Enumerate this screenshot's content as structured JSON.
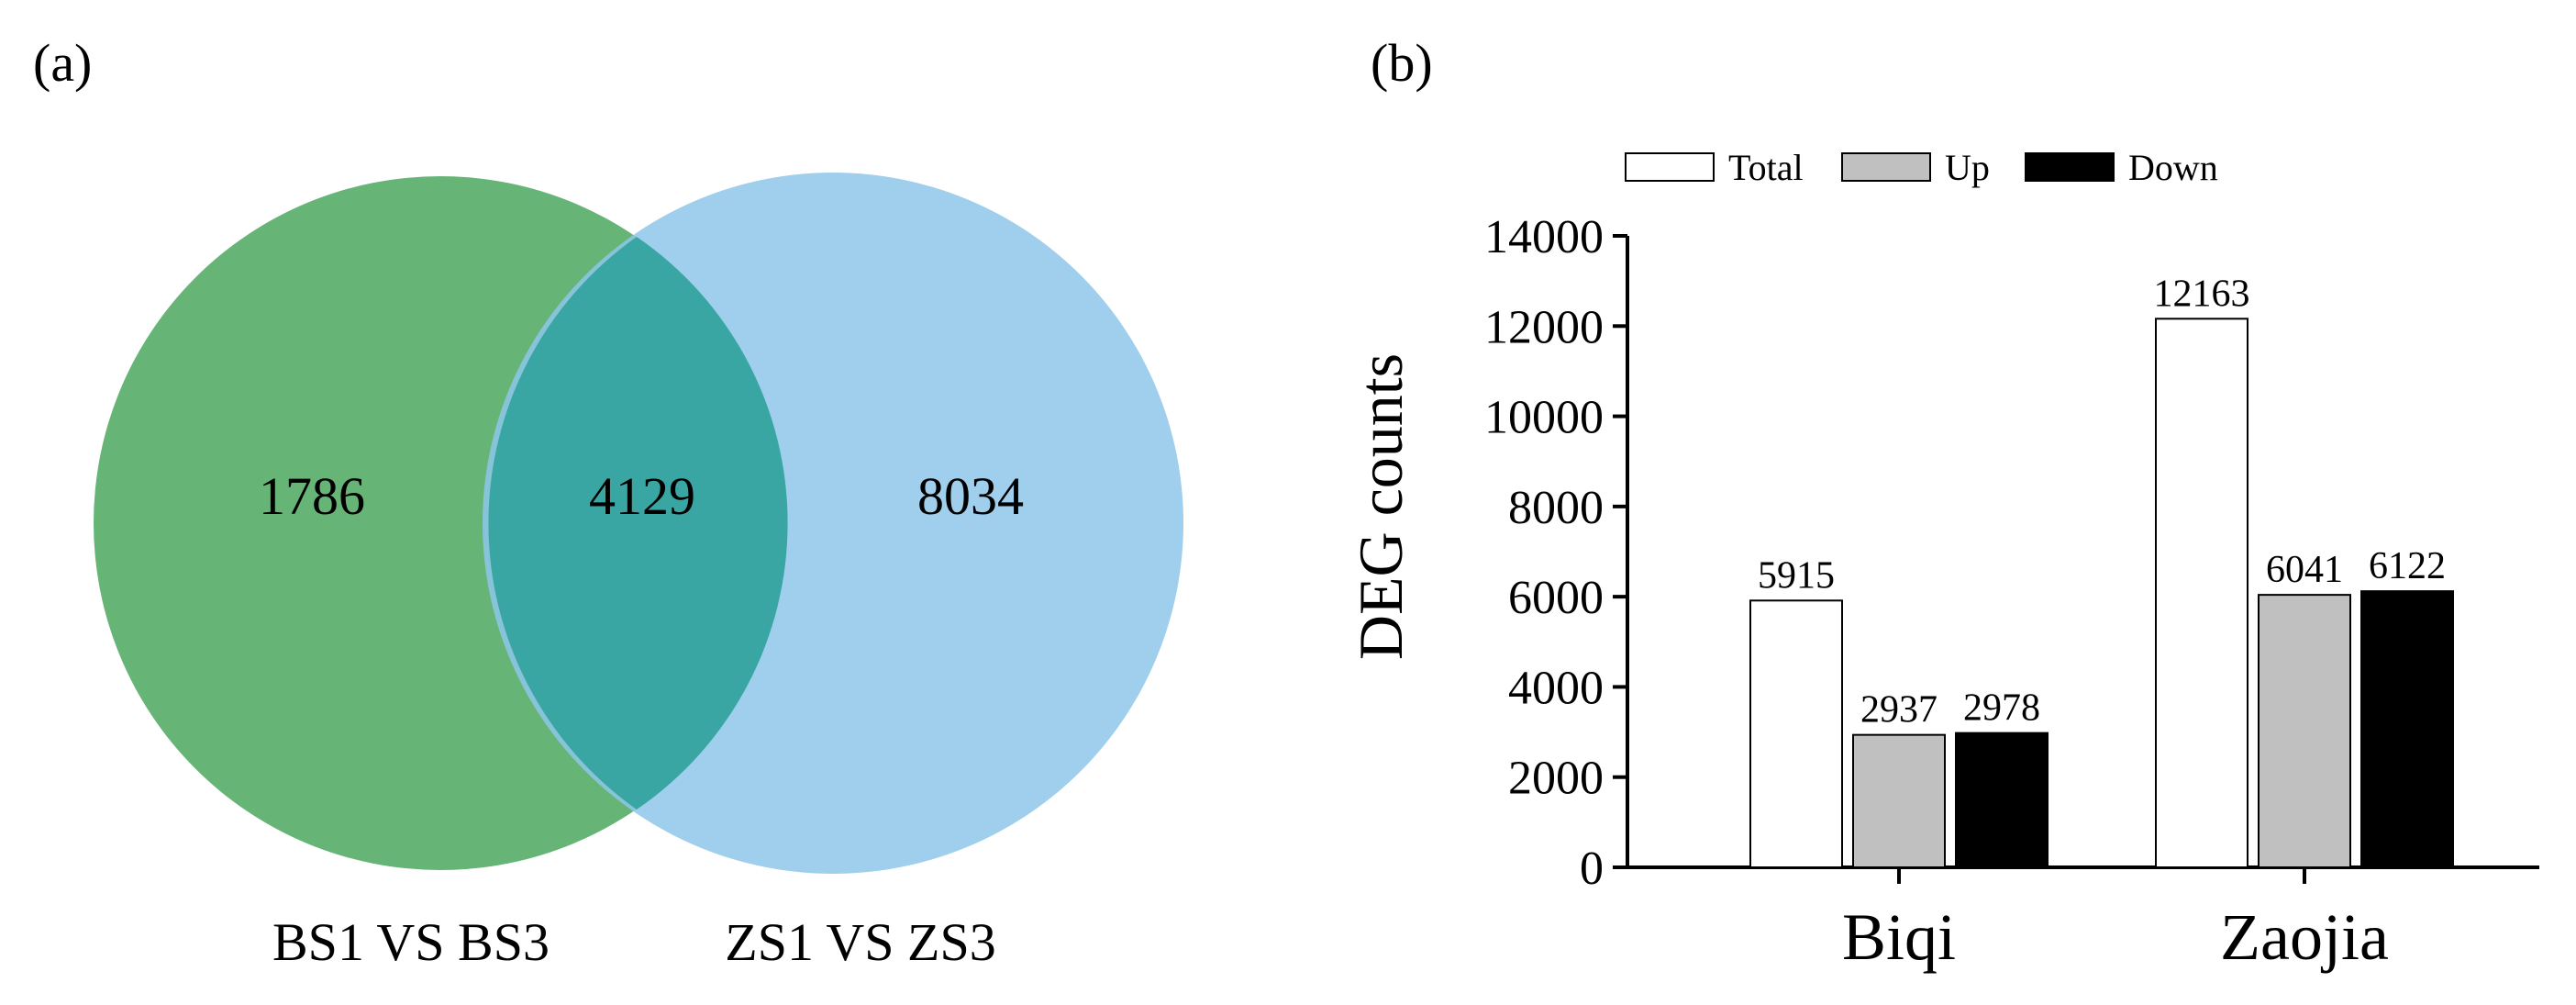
{
  "panel_a": {
    "label": "(a)",
    "sets": [
      {
        "name": "BS1 VS BS3",
        "color": "#5fb070"
      },
      {
        "name": "ZS1 VS ZS3",
        "color": "#8ec7ea"
      }
    ],
    "overlap_color": "#3aa6a4",
    "counts": {
      "left_only": "1786",
      "both": "4129",
      "right_only": "8034"
    }
  },
  "panel_b": {
    "label": "(b)",
    "chart_data": {
      "type": "bar",
      "categories": [
        "Biqi",
        "Zaojia"
      ],
      "series": [
        {
          "name": "Total",
          "values": [
            5915,
            12163
          ],
          "color": "#ffffff"
        },
        {
          "name": "Up",
          "values": [
            2937,
            6041
          ],
          "color": "#c0c0c0"
        },
        {
          "name": "Down",
          "values": [
            2978,
            6122
          ],
          "color": "#000000"
        }
      ],
      "ylabel": "DEG counts",
      "ylim": [
        0,
        14000
      ],
      "yticks": [
        0,
        2000,
        4000,
        6000,
        8000,
        10000,
        12000,
        14000
      ],
      "legend_position": "top",
      "grid": false
    }
  }
}
